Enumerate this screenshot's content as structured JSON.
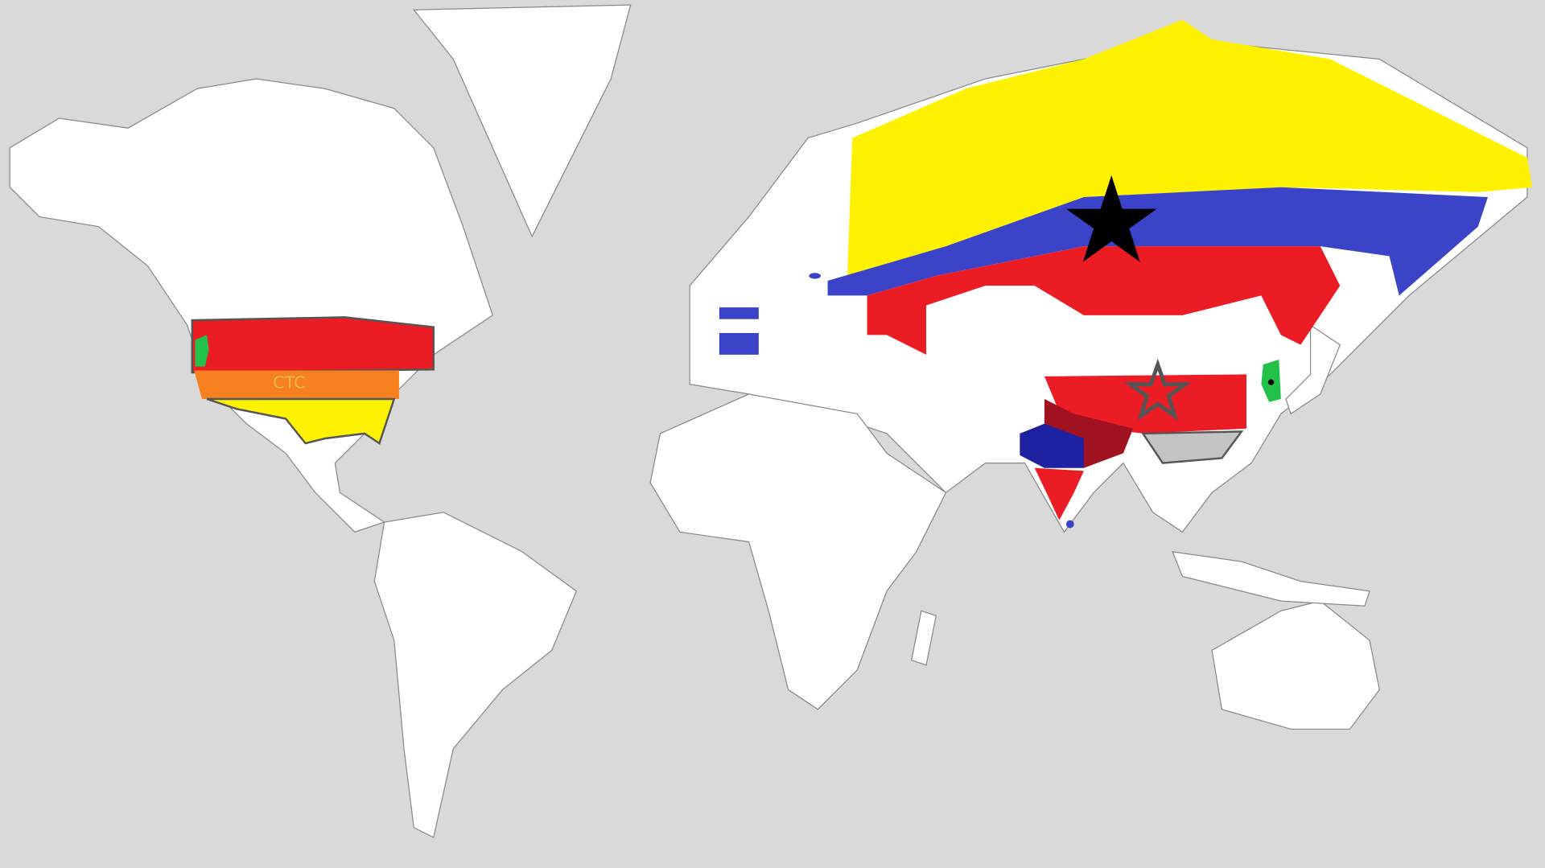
{
  "map": {
    "labels": {
      "usa_region": "CTC"
    },
    "colors": {
      "ocean": "#d9d9d9",
      "land": "#ffffff",
      "yellow": "#fff200",
      "blue": "#3b44c8",
      "red": "#ec1c24",
      "orange": "#f7801f",
      "green": "#22c14a",
      "gray": "#c3c3c3",
      "dark_red": "#a11220",
      "navy": "#1e22a0"
    },
    "markers": [
      "black-star",
      "gray-star"
    ]
  }
}
